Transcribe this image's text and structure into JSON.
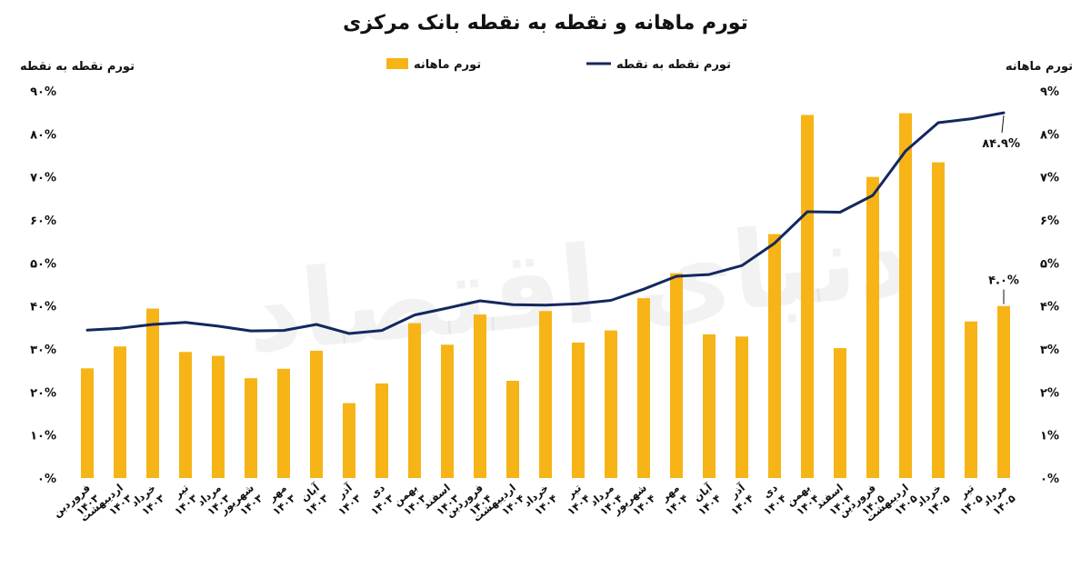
{
  "chart_data": {
    "type": "bar+line",
    "title": "تورم ماهانه و نقطه به نقطه بانک مرکزی",
    "left_axis_title": "تورم نقطه به نقطه",
    "right_axis_title": "تورم ماهانه",
    "legend": [
      "تورم ماهانه",
      "تورم نقطه به نقطه"
    ],
    "left_ticks": [
      "۰%",
      "۱۰%",
      "۲۰%",
      "۳۰%",
      "۴۰%",
      "۵۰%",
      "۶۰%",
      "۷۰%",
      "۸۰%",
      "۹۰%"
    ],
    "right_ticks": [
      "۰%",
      "۱%",
      "۲%",
      "۳%",
      "۴%",
      "۵%",
      "۶%",
      "۷%",
      "۸%",
      "۹%"
    ],
    "left_ylim": [
      0,
      90
    ],
    "right_ylim": [
      0,
      9
    ],
    "categories": [
      [
        "فروردین",
        "۱۴۰۳"
      ],
      [
        "اردیبهشت",
        "۱۴۰۳"
      ],
      [
        "خرداد",
        "۱۴۰۳"
      ],
      [
        "تیر",
        "۱۴۰۳"
      ],
      [
        "مرداد",
        "۱۴۰۳"
      ],
      [
        "شهریور",
        "۱۴۰۳"
      ],
      [
        "مهر",
        "۱۴۰۳"
      ],
      [
        "آبان",
        "۱۴۰۳"
      ],
      [
        "آذر",
        "۱۴۰۳"
      ],
      [
        "دی",
        "۱۴۰۳"
      ],
      [
        "بهمن",
        "۱۴۰۳"
      ],
      [
        "اسفند",
        "۱۴۰۳"
      ],
      [
        "فروردین",
        "۱۴۰۴"
      ],
      [
        "اردیبهشت",
        "۱۴۰۴"
      ],
      [
        "خرداد",
        "۱۴۰۴"
      ],
      [
        "تیر",
        "۱۴۰۴"
      ],
      [
        "مرداد",
        "۱۴۰۴"
      ],
      [
        "شهریور",
        "۱۴۰۴"
      ],
      [
        "مهر",
        "۱۴۰۴"
      ],
      [
        "آبان",
        "۱۴۰۴"
      ],
      [
        "آذر",
        "۱۴۰۴"
      ],
      [
        "دی",
        "۱۴۰۴"
      ],
      [
        "بهمن",
        "۱۴۰۴"
      ],
      [
        "اسفند",
        "۱۴۰۴"
      ],
      [
        "فروردین",
        "۱۴۰۵"
      ],
      [
        "اردیبهشت",
        "۱۴۰۵"
      ],
      [
        "خرداد",
        "۱۴۰۵"
      ],
      [
        "تیر",
        "۱۴۰۵"
      ],
      [
        "مرداد",
        "۱۴۰۵"
      ]
    ],
    "series": [
      {
        "name": "تورم ماهانه",
        "type": "bar",
        "axis": "right",
        "color": "#F6B417",
        "values": [
          2.55,
          3.06,
          3.94,
          2.93,
          2.84,
          2.32,
          2.54,
          2.96,
          1.74,
          2.2,
          3.6,
          3.1,
          3.8,
          2.26,
          3.88,
          3.15,
          3.43,
          4.18,
          4.76,
          3.34,
          3.29,
          5.67,
          8.44,
          3.02,
          7.0,
          8.48,
          7.34,
          3.64,
          4.0
        ]
      },
      {
        "name": "تورم نقطه به نقطه",
        "type": "line",
        "axis": "left",
        "color": "#14285E",
        "values": [
          34.4,
          34.8,
          35.7,
          36.2,
          35.3,
          34.2,
          34.3,
          35.7,
          33.6,
          34.3,
          37.9,
          39.5,
          41.2,
          40.3,
          40.2,
          40.5,
          41.3,
          43.9,
          46.9,
          47.3,
          49.4,
          54.6,
          61.9,
          61.8,
          65.7,
          76.0,
          82.6,
          83.5,
          84.9
        ]
      }
    ],
    "annotations": [
      {
        "text": "۸۴.۹%",
        "series": "تورم نقطه به نقطه",
        "index": 28
      },
      {
        "text": "۴.۰%",
        "series": "تورم ماهانه",
        "index": 28
      }
    ],
    "watermark": "دنیای اقتصاد",
    "grid": false,
    "legend_position": "top"
  }
}
